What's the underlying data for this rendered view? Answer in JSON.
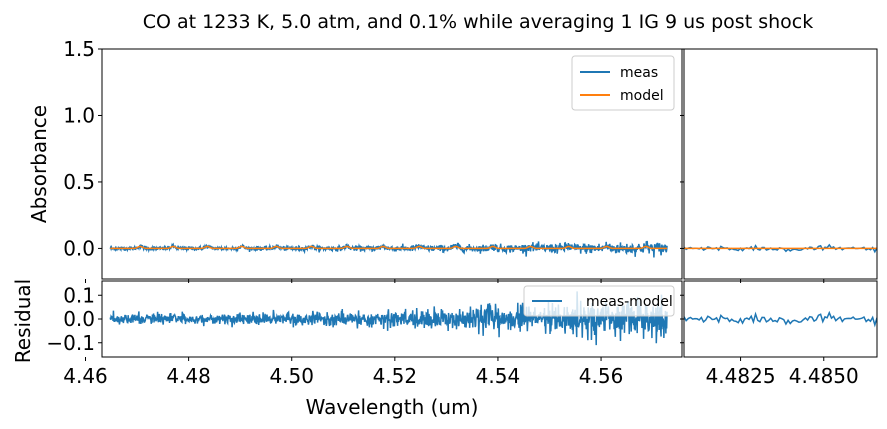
{
  "chart_data": {
    "type": "line",
    "title": "CO at 1233 K, 5.0 atm, and 0.1% while averaging 1 IG 9 us post shock",
    "colors": {
      "meas": "#1f77b4",
      "model": "#ff7f0e"
    },
    "panels": {
      "main": {
        "ylabel": "Absorbance",
        "ylim": [
          -0.23,
          1.5
        ],
        "yticks": [
          "1.5",
          "1.0",
          "0.5",
          "0.0"
        ],
        "xlim": [
          4.4632,
          4.5757
        ],
        "x_range_data": [
          4.4648,
          4.5728
        ],
        "series": [
          {
            "name": "meas",
            "baseline": 0.0,
            "noise_start": 0.015,
            "noise_end": 0.08
          },
          {
            "name": "model",
            "baseline": 0.0,
            "line_positions": [
              4.4706,
              4.477,
              4.4836,
              4.4903,
              4.497,
              4.5038,
              4.5107,
              4.5177,
              4.5247,
              4.5318,
              4.539,
              4.5463,
              4.5537,
              4.5611,
              4.5687
            ],
            "line_peak": 0.015
          }
        ],
        "legend": [
          "meas",
          "model"
        ],
        "legend_position": "upper right"
      },
      "zoom": {
        "xlim": [
          4.4808,
          4.4866
        ],
        "xticks": [
          "4.4825",
          "4.4850"
        ],
        "x_tick_values": [
          4.4825,
          4.485
        ]
      },
      "residual": {
        "ylabel": "Residual",
        "xlabel": "Wavelength (um)",
        "ylim": [
          -0.16,
          0.16
        ],
        "yticks": [
          "0.1",
          "0.0",
          "−0.1"
        ],
        "y_tick_values": [
          0.1,
          0.0,
          -0.1
        ],
        "xticks": [
          "4.46",
          "4.48",
          "4.50",
          "4.52",
          "4.54",
          "4.56"
        ],
        "x_tick_values": [
          4.46,
          4.48,
          4.5,
          4.52,
          4.54,
          4.56
        ],
        "legend": [
          "meas-model"
        ],
        "legend_position": "upper right",
        "noise_start": 0.02,
        "noise_end": 0.085
      }
    }
  }
}
